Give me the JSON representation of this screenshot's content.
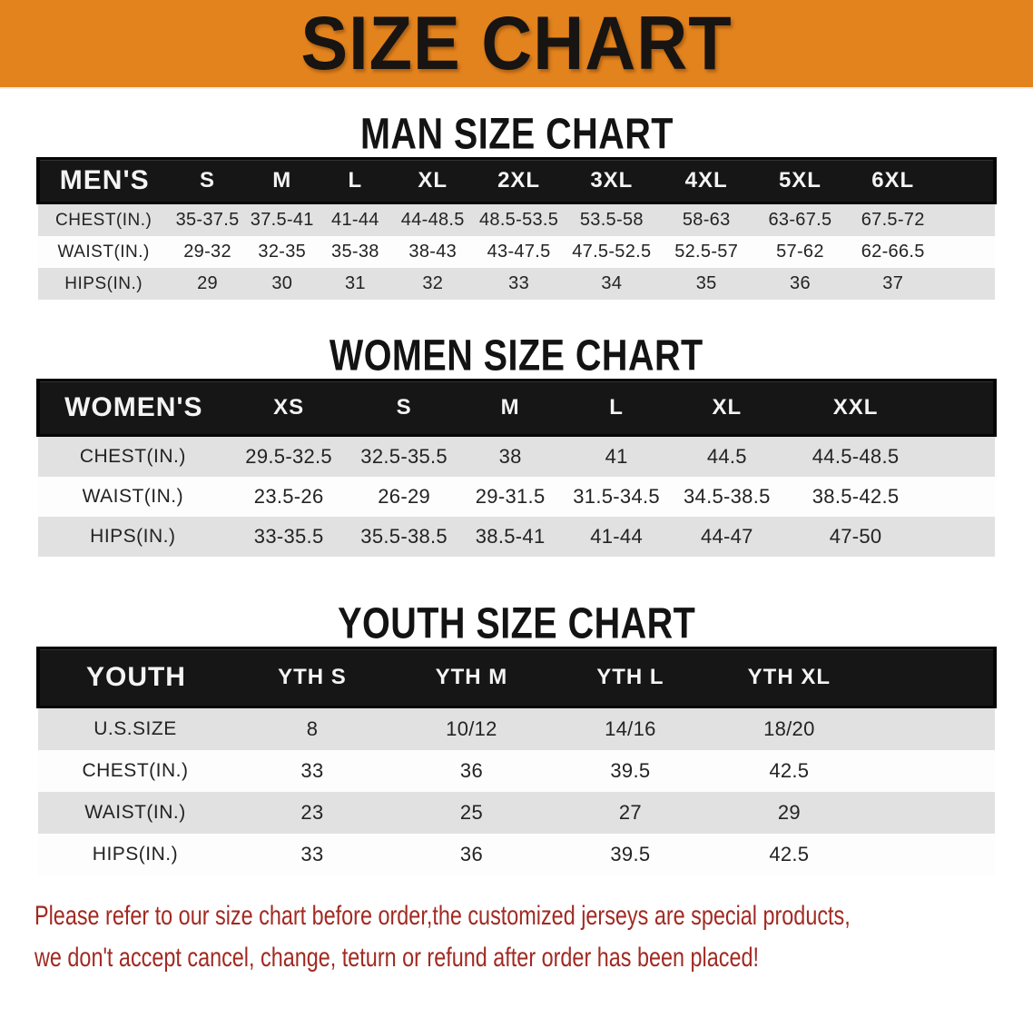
{
  "banner": {
    "title": "SIZE CHART"
  },
  "sections": [
    {
      "heading": "MAN SIZE CHART",
      "table": {
        "label": "MEN'S",
        "columns": [
          "S",
          "M",
          "L",
          "XL",
          "2XL",
          "3XL",
          "4XL",
          "5XL",
          "6XL"
        ],
        "rows": [
          {
            "label": "CHEST(IN.)",
            "values": [
              "35-37.5",
              "37.5-41",
              "41-44",
              "44-48.5",
              "48.5-53.5",
              "53.5-58",
              "58-63",
              "63-67.5",
              "67.5-72"
            ]
          },
          {
            "label": "WAIST(IN.)",
            "values": [
              "29-32",
              "32-35",
              "35-38",
              "38-43",
              "43-47.5",
              "47.5-52.5",
              "52.5-57",
              "57-62",
              "62-66.5"
            ]
          },
          {
            "label": "HIPS(IN.)",
            "values": [
              "29",
              "30",
              "31",
              "32",
              "33",
              "34",
              "35",
              "36",
              "37"
            ]
          }
        ]
      }
    },
    {
      "heading": "WOMEN SIZE CHART",
      "table": {
        "label": "WOMEN'S",
        "columns": [
          "XS",
          "S",
          "M",
          "L",
          "XL",
          "XXL"
        ],
        "rows": [
          {
            "label": "CHEST(IN.)",
            "values": [
              "29.5-32.5",
              "32.5-35.5",
              "38",
              "41",
              "44.5",
              "44.5-48.5"
            ]
          },
          {
            "label": "WAIST(IN.)",
            "values": [
              "23.5-26",
              "26-29",
              "29-31.5",
              "31.5-34.5",
              "34.5-38.5",
              "38.5-42.5"
            ]
          },
          {
            "label": "HIPS(IN.)",
            "values": [
              "33-35.5",
              "35.5-38.5",
              "38.5-41",
              "41-44",
              "44-47",
              "47-50"
            ]
          }
        ]
      }
    },
    {
      "heading": "YOUTH SIZE CHART",
      "table": {
        "label": "YOUTH",
        "columns": [
          "YTH S",
          "YTH M",
          "YTH L",
          "YTH XL"
        ],
        "rows": [
          {
            "label": "U.S.SIZE",
            "values": [
              "8",
              "10/12",
              "14/16",
              "18/20"
            ]
          },
          {
            "label": "CHEST(IN.)",
            "values": [
              "33",
              "36",
              "39.5",
              "42.5"
            ]
          },
          {
            "label": "WAIST(IN.)",
            "values": [
              "23",
              "25",
              "27",
              "29"
            ]
          },
          {
            "label": "HIPS(IN.)",
            "values": [
              "33",
              "36",
              "39.5",
              "42.5"
            ]
          }
        ]
      }
    }
  ],
  "footer": {
    "line1": "Please refer to our size chart before order,the customized jerseys are special products,",
    "line2": "we don't accept cancel, change, teturn or refund after order has been placed!"
  },
  "theme": {
    "banner_bg": "#e2831e",
    "banner_text": "#171411",
    "header_bg": "#161616",
    "row_alt_bg": "#e1e1e1",
    "row_bg": "#fdfdfd",
    "note_color": "#a12a22",
    "text_color": "#1b1b1b"
  }
}
